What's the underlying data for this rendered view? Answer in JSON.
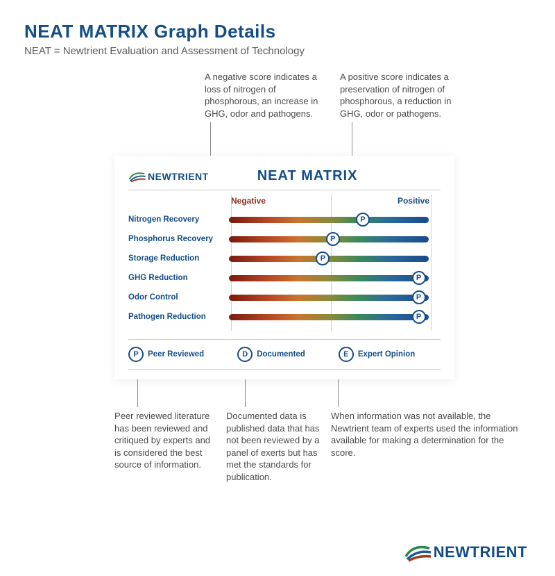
{
  "header": {
    "title": "NEAT MATRIX Graph Details",
    "subtitle": "NEAT = Newtrient Evaluation and Assessment of Technology"
  },
  "top_callouts": {
    "negative": "A negative score indicates a loss of nitrogen of phosphorous, an increase in GHG, odor and pathogens.",
    "positive": "A positive score indicates a preservation of nitrogen of phosphorous, a reduction in GHG, odor or pathogens."
  },
  "card": {
    "logo_text": "NEWTRIENT",
    "matrix_title": "NEAT MATRIX",
    "axis": {
      "negative": "Negative",
      "positive": "Positive"
    },
    "bar_gradient": [
      "#7a1a0e",
      "#b84824",
      "#c9752e",
      "#8a8a3a",
      "#3a8a5a",
      "#2a6a9a",
      "#1a4a8a"
    ],
    "grid_positions_pct": [
      0,
      50,
      100
    ],
    "rows": [
      {
        "label": "Nitrogen Recovery",
        "marker_letter": "P",
        "marker_pct": 67
      },
      {
        "label": "Phosphorus Recovery",
        "marker_letter": "P",
        "marker_pct": 52
      },
      {
        "label": "Storage Reduction",
        "marker_letter": "P",
        "marker_pct": 47
      },
      {
        "label": "GHG Reduction",
        "marker_letter": "P",
        "marker_pct": 95
      },
      {
        "label": "Odor Control",
        "marker_letter": "P",
        "marker_pct": 95
      },
      {
        "label": "Pathogen Reduction",
        "marker_letter": "P",
        "marker_pct": 95
      }
    ],
    "legend": [
      {
        "letter": "P",
        "label": "Peer Reviewed"
      },
      {
        "letter": "D",
        "label": "Documented"
      },
      {
        "letter": "E",
        "label": "Expert Opinion"
      }
    ]
  },
  "bottom_callouts": {
    "peer": "Peer reviewed literature has been reviewed and critiqued by experts and is considered the best source of information.",
    "documented": "Documented data is published data that has not been reviewed by a panel of exerts but has met the standards for publication.",
    "expert": "When information was not available, the Newtrient team of experts used the information available for making a determination for the score."
  },
  "colors": {
    "primary": "#134d87",
    "neg_text": "#8b2e1a",
    "body_text": "#4a4a4a",
    "grid": "#d0d0d0"
  },
  "footer_logo_text": "NEWTRIENT"
}
